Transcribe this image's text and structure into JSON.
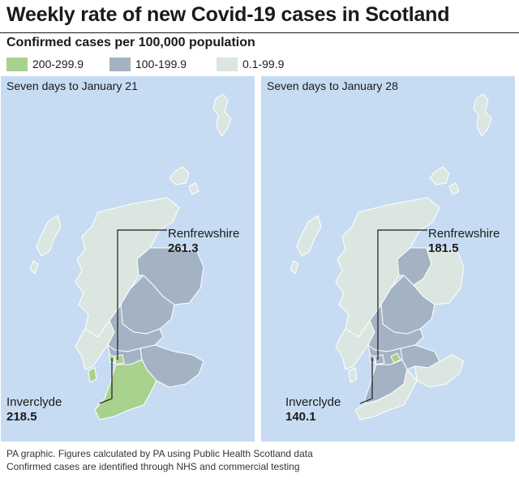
{
  "header": {
    "title": "Weekly rate of new Covid-19 cases in Scotland",
    "subtitle": "Confirmed cases per 100,000 population"
  },
  "legend": [
    {
      "label": "200-299.9",
      "color": "#a9d18e"
    },
    {
      "label": "100-199.9",
      "color": "#a4b3c3"
    },
    {
      "label": "0.1-99.9",
      "color": "#dae6df"
    }
  ],
  "colors": {
    "sea": "#c7dcf2",
    "high": "#a9d18e",
    "mid": "#a4b3c3",
    "low": "#dae6df",
    "border": "#ffffff",
    "leader": "#1a1a1a"
  },
  "maps": [
    {
      "title": "Seven days to January 21",
      "renfrewshire": {
        "name": "Renfrewshire",
        "value": "261.3",
        "category": "200-299.9"
      },
      "inverclyde": {
        "name": "Inverclyde",
        "value": "218.5",
        "category": "200-299.9"
      }
    },
    {
      "title": "Seven days to January 28",
      "renfrewshire": {
        "name": "Renfrewshire",
        "value": "181.5",
        "category": "100-199.9"
      },
      "inverclyde": {
        "name": "Inverclyde",
        "value": "140.1",
        "category": "100-199.9"
      }
    }
  ],
  "footer": {
    "line1": "PA graphic. Figures calculated by PA using Public Health Scotland data",
    "line2": "Confirmed cases are identified through NHS and commercial testing"
  }
}
